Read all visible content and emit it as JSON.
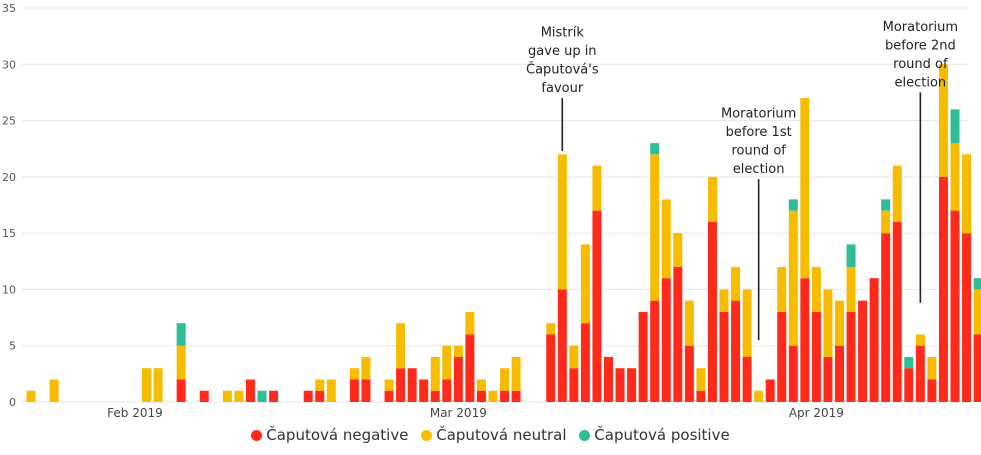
{
  "chart_data": {
    "type": "bar",
    "stacked": true,
    "ylim": [
      0,
      35
    ],
    "y_ticks": [
      "0",
      "5",
      "10",
      "15",
      "20",
      "25",
      "30",
      "35"
    ],
    "x_ticks": [
      {
        "label": "Feb 2019",
        "day_index": 9
      },
      {
        "label": "Mar 2019",
        "day_index": 37
      },
      {
        "label": "Apr 2019",
        "day_index": 68
      }
    ],
    "grid": true,
    "legend_position": "bottom",
    "series": [
      {
        "name": "Čaputová negative",
        "color": "#ff2a1a",
        "values": [
          0,
          0,
          0,
          0,
          0,
          0,
          0,
          0,
          0,
          0,
          0,
          0,
          0,
          2,
          0,
          1,
          0,
          0,
          0,
          2,
          0,
          1,
          0,
          0,
          1,
          1,
          0,
          0,
          2,
          2,
          0,
          1,
          3,
          3,
          2,
          1,
          2,
          4,
          6,
          1,
          0,
          1,
          1,
          0,
          0,
          6,
          10,
          3,
          7,
          17,
          4,
          3,
          3,
          8,
          9,
          11,
          12,
          5,
          1,
          16,
          8,
          9,
          4,
          0,
          2,
          8,
          5,
          11,
          8,
          4,
          5,
          8,
          9,
          11,
          15,
          16,
          3,
          5,
          2,
          20,
          17,
          15,
          6
        ]
      },
      {
        "name": "Čaputová neutral",
        "color": "#f7bb00",
        "values": [
          1,
          0,
          2,
          0,
          0,
          0,
          0,
          0,
          0,
          0,
          3,
          3,
          0,
          3,
          0,
          0,
          0,
          1,
          1,
          0,
          0,
          0,
          0,
          0,
          0,
          1,
          2,
          0,
          1,
          2,
          0,
          1,
          4,
          0,
          0,
          3,
          3,
          1,
          2,
          1,
          1,
          2,
          3,
          0,
          0,
          1,
          12,
          2,
          7,
          4,
          0,
          0,
          0,
          0,
          13,
          7,
          3,
          4,
          2,
          4,
          2,
          3,
          6,
          1,
          0,
          4,
          12,
          16,
          4,
          6,
          4,
          4,
          0,
          0,
          2,
          5,
          0,
          1,
          2,
          10,
          6,
          7,
          4
        ]
      },
      {
        "name": "Čaputová positive",
        "color": "#2ebd96",
        "values": [
          0,
          0,
          0,
          0,
          0,
          0,
          0,
          0,
          0,
          0,
          0,
          0,
          0,
          2,
          0,
          0,
          0,
          0,
          0,
          0,
          1,
          0,
          0,
          0,
          0,
          0,
          0,
          0,
          0,
          0,
          0,
          0,
          0,
          0,
          0,
          0,
          0,
          0,
          0,
          0,
          0,
          0,
          0,
          0,
          0,
          0,
          0,
          0,
          0,
          0,
          0,
          0,
          0,
          0,
          1,
          0,
          0,
          0,
          0,
          0,
          0,
          0,
          0,
          0,
          0,
          0,
          1,
          0,
          0,
          0,
          0,
          2,
          0,
          0,
          1,
          0,
          1,
          0,
          0,
          0,
          3,
          0,
          1
        ]
      }
    ],
    "annotations": [
      {
        "lines": [
          "Mistrík",
          "gave up in",
          "Čaputová's",
          "favour"
        ],
        "day_index": 46,
        "line_top": 27.0,
        "line_bottom": 22.3
      },
      {
        "lines": [
          "Moratorium",
          "before 1st",
          "round of",
          "election"
        ],
        "day_index": 63,
        "line_top": 19.8,
        "line_bottom": 5.5
      },
      {
        "lines": [
          "Moratorium",
          "before 2nd",
          "round of",
          "election"
        ],
        "day_index": 77,
        "line_top": 27.5,
        "line_bottom": 8.8
      }
    ]
  }
}
